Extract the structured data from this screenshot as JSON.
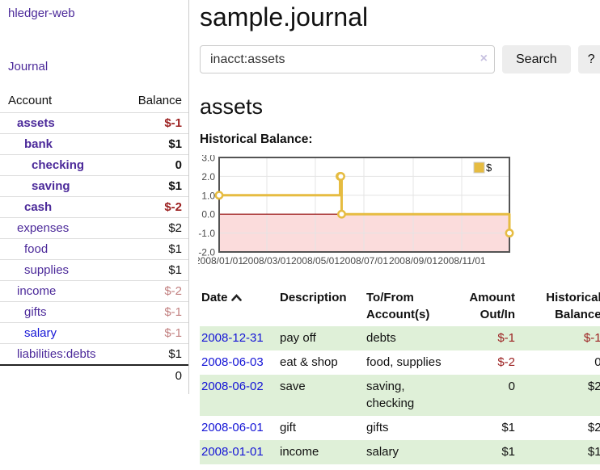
{
  "colors": {
    "link_purple": "#4c2a9a",
    "link_blue": "#1717d6",
    "negative": "#9c2121",
    "negative_light": "#c28080",
    "row_highlight_green": "#dff0d8",
    "chart_line_gold": "#e6bc41",
    "chart_negative_region_pink": "#fbdcdc",
    "chart_zero_line_red": "#8f0000"
  },
  "sidebar": {
    "brand": "hledger-web",
    "journal_link": "Journal",
    "accounts_table": {
      "headers": {
        "account": "Account",
        "balance": "Balance"
      },
      "rows": [
        {
          "name": "assets",
          "balance": "$-1",
          "level": 1,
          "emphasis": true,
          "balance_style": "negative",
          "link_color": "purple"
        },
        {
          "name": "bank",
          "balance": "$1",
          "level": 2,
          "emphasis": true,
          "balance_style": "normal",
          "link_color": "purple"
        },
        {
          "name": "checking",
          "balance": "0",
          "level": 3,
          "emphasis": true,
          "balance_style": "normal",
          "link_color": "purple"
        },
        {
          "name": "saving",
          "balance": "$1",
          "level": 3,
          "emphasis": true,
          "balance_style": "normal",
          "link_color": "purple"
        },
        {
          "name": "cash",
          "balance": "$-2",
          "level": 2,
          "emphasis": true,
          "balance_style": "negative",
          "link_color": "purple"
        },
        {
          "name": "expenses",
          "balance": "$2",
          "level": 1,
          "emphasis": false,
          "balance_style": "normal",
          "link_color": "purple"
        },
        {
          "name": "food",
          "balance": "$1",
          "level": 2,
          "emphasis": false,
          "balance_style": "normal",
          "link_color": "purple"
        },
        {
          "name": "supplies",
          "balance": "$1",
          "level": 2,
          "emphasis": false,
          "balance_style": "normal",
          "link_color": "purple"
        },
        {
          "name": "income",
          "balance": "$-2",
          "level": 1,
          "emphasis": false,
          "balance_style": "negative-light",
          "link_color": "purple"
        },
        {
          "name": "gifts",
          "balance": "$-1",
          "level": 2,
          "emphasis": false,
          "balance_style": "negative-light",
          "link_color": "purple"
        },
        {
          "name": "salary",
          "balance": "$-1",
          "level": 2,
          "emphasis": false,
          "balance_style": "negative-light",
          "link_color": "blue"
        },
        {
          "name": "liabilities:debts",
          "balance": "$1",
          "level": 1,
          "emphasis": false,
          "balance_style": "normal",
          "link_color": "purple"
        }
      ],
      "total": "0"
    }
  },
  "header": {
    "title": "sample.journal"
  },
  "search": {
    "value": "inacct:assets",
    "clear_icon": "×",
    "search_button": "Search",
    "help_button": "?"
  },
  "account_page": {
    "title": "assets",
    "chart_heading": "Historical Balance:"
  },
  "chart_data": {
    "type": "line",
    "line_style": "step",
    "series": [
      {
        "name": "$",
        "color": "#e6bc41",
        "points": [
          [
            "2008-01-01",
            1
          ],
          [
            "2008-06-01",
            2
          ],
          [
            "2008-06-02",
            2
          ],
          [
            "2008-06-03",
            0
          ],
          [
            "2008-12-31",
            -1
          ]
        ]
      }
    ],
    "x_range": [
      "2008-01-01",
      "2008-12-31"
    ],
    "ylim": [
      -2,
      3
    ],
    "y_ticks": [
      {
        "label": "3.0",
        "value": 3
      },
      {
        "label": "2.0",
        "value": 2
      },
      {
        "label": "1.0",
        "value": 1
      },
      {
        "label": "0.0",
        "value": 0
      },
      {
        "label": "-1.0",
        "value": -1
      },
      {
        "label": "-2.0",
        "value": -2
      }
    ],
    "x_ticks": [
      {
        "label": "2008/01/01",
        "date": "2008-01-01"
      },
      {
        "label": "2008/03/01",
        "date": "2008-03-01"
      },
      {
        "label": "2008/05/01",
        "date": "2008-05-01"
      },
      {
        "label": "2008/07/01",
        "date": "2008-07-01"
      },
      {
        "label": "2008/09/01",
        "date": "2008-09-01"
      },
      {
        "label": "2008/11/01",
        "date": "2008-11-01"
      }
    ],
    "legend": {
      "position": "top-right",
      "label": "$"
    },
    "grid": true,
    "negative_region_shaded": true
  },
  "register_table": {
    "headers": {
      "date": "Date",
      "description": "Description",
      "accounts": "To/From Account(s)",
      "amount": "Amount Out/In",
      "balance": "Historical Balance"
    },
    "sort": {
      "column": "date",
      "direction": "ascending"
    },
    "rows": [
      {
        "date": "2008-12-31",
        "description": "pay off",
        "accounts": "debts",
        "amount": "$-1",
        "amount_negative": true,
        "balance": "$-1",
        "balance_negative": true,
        "highlight": true
      },
      {
        "date": "2008-06-03",
        "description": "eat & shop",
        "accounts": "food, supplies",
        "amount": "$-2",
        "amount_negative": true,
        "balance": "0",
        "balance_negative": false,
        "highlight": false
      },
      {
        "date": "2008-06-02",
        "description": "save",
        "accounts": "saving, checking",
        "amount": "0",
        "amount_negative": false,
        "balance": "$2",
        "balance_negative": false,
        "highlight": true
      },
      {
        "date": "2008-06-01",
        "description": "gift",
        "accounts": "gifts",
        "amount": "$1",
        "amount_negative": false,
        "balance": "$2",
        "balance_negative": false,
        "highlight": false
      },
      {
        "date": "2008-01-01",
        "description": "income",
        "accounts": "salary",
        "amount": "$1",
        "amount_negative": false,
        "balance": "$1",
        "balance_negative": false,
        "highlight": true
      }
    ]
  }
}
